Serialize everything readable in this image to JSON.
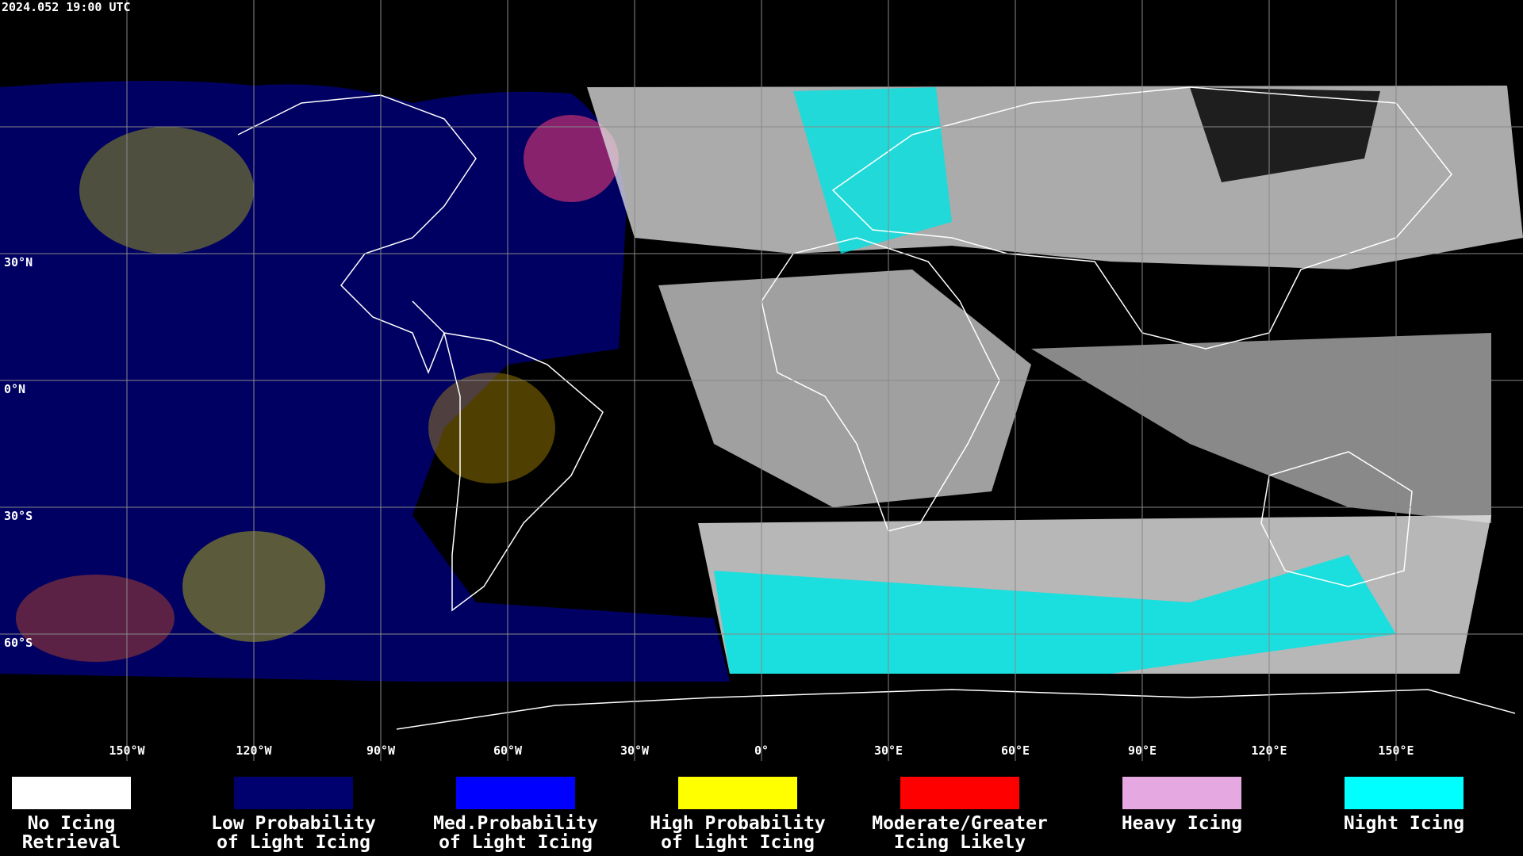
{
  "timestamp": "2024.052 19:00 UTC",
  "map": {
    "xlim": [
      -180,
      180
    ],
    "ylim": [
      -90,
      90
    ],
    "lon_ticks": [
      {
        "value": -150,
        "label": "150°W"
      },
      {
        "value": -120,
        "label": "120°W"
      },
      {
        "value": -90,
        "label": "90°W"
      },
      {
        "value": -60,
        "label": "60°W"
      },
      {
        "value": -30,
        "label": "30°W"
      },
      {
        "value": 0,
        "label": "0°"
      },
      {
        "value": 30,
        "label": "30°E"
      },
      {
        "value": 60,
        "label": "60°E"
      },
      {
        "value": 90,
        "label": "90°E"
      },
      {
        "value": 120,
        "label": "120°E"
      },
      {
        "value": 150,
        "label": "150°E"
      }
    ],
    "lat_ticks": [
      {
        "value": 30,
        "label": "30°N"
      },
      {
        "value": 0,
        "label": "0°N"
      },
      {
        "value": -30,
        "label": "30°S"
      },
      {
        "value": -60,
        "label": "60°S"
      }
    ]
  },
  "legend": [
    {
      "color": "#ffffff",
      "lines": [
        "No Icing",
        "Retrieval"
      ]
    },
    {
      "color": "#00006e",
      "lines": [
        "Low Probability",
        "of Light Icing"
      ]
    },
    {
      "color": "#0000ff",
      "lines": [
        "Med.Probability",
        "of Light Icing"
      ]
    },
    {
      "color": "#ffff00",
      "lines": [
        "High Probability",
        "of Light Icing"
      ]
    },
    {
      "color": "#ff0000",
      "lines": [
        "Moderate/Greater",
        "Icing Likely"
      ]
    },
    {
      "color": "#e6a8e0",
      "lines": [
        "Heavy Icing"
      ]
    },
    {
      "color": "#00ffff",
      "lines": [
        "Night Icing"
      ]
    }
  ]
}
